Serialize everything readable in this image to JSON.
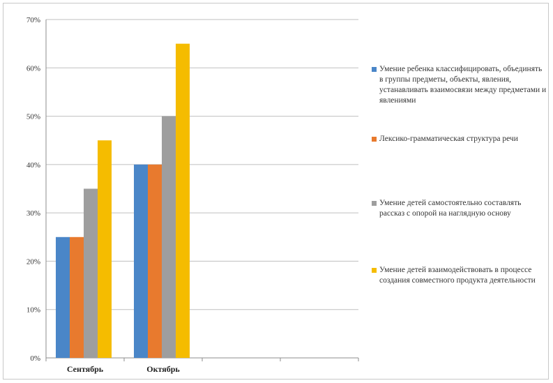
{
  "chart_data": {
    "type": "bar",
    "categories": [
      "Сентябрь",
      "Октябрь"
    ],
    "series": [
      {
        "name": "Умение ребенка классифицировать, объединять в группы предметы, объекты, явления, устанавливать взаимосвязи между предметами и явлениями",
        "color": "#4a86c8",
        "values": [
          25,
          40
        ]
      },
      {
        "name": "Лексико-грамматическая структура речи",
        "color": "#e87a2e",
        "values": [
          25,
          40
        ]
      },
      {
        "name": "Умение детей самостоятельно составлять рассказ с опорой на наглядную основу",
        "color": "#9e9e9e",
        "values": [
          35,
          50
        ]
      },
      {
        "name": "Умение детей взаимодействовать в процессе создания совместного продукта деятельности",
        "color": "#f5bc00",
        "values": [
          45,
          65
        ]
      }
    ],
    "ylim": [
      0,
      70
    ],
    "yticks": [
      "0%",
      "10%",
      "20%",
      "30%",
      "40%",
      "50%",
      "60%",
      "70%"
    ],
    "grid": true,
    "legend_position": "right",
    "xlabel": "",
    "ylabel": ""
  }
}
